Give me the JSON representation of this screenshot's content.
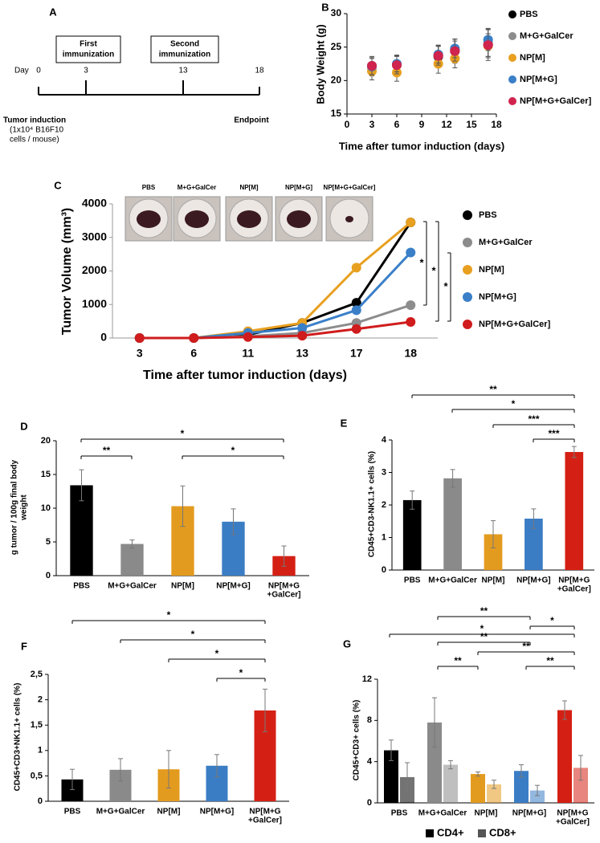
{
  "timeline": {
    "panel": "A",
    "day_label": "Day",
    "days": [
      0,
      3,
      13,
      18
    ],
    "events": [
      [
        "First",
        "immunization"
      ],
      [
        "Second",
        "immunization"
      ]
    ],
    "start": [
      "Tumor induction",
      "(1x10⁴ B16F10",
      "cells / mouse)"
    ],
    "end": "Endpoint"
  },
  "chart_data": [
    {
      "type": "scatter",
      "panel": "B",
      "y_label": "Body Weight (g)",
      "x_label": "Time after tumor induction (days)",
      "xlim": [
        0,
        18
      ],
      "xticks": [
        0,
        3,
        6,
        9,
        12,
        15,
        18
      ],
      "ylim": [
        15,
        30
      ],
      "yticks": [
        15,
        20,
        25,
        30
      ],
      "x": [
        3,
        6,
        11,
        13,
        17
      ],
      "series": [
        {
          "name": "PBS",
          "color": "#000000",
          "values": [
            22.2,
            22.4,
            23.6,
            24.4,
            25.4
          ],
          "errors": [
            1.4,
            1.4,
            1.6,
            1.8,
            2.4
          ]
        },
        {
          "name": "M+G+GalCer",
          "color": "#8c8c8c",
          "values": [
            22.0,
            22.3,
            23.8,
            24.6,
            25.6
          ],
          "errors": [
            1.3,
            1.5,
            1.5,
            1.6,
            2.0
          ]
        },
        {
          "name": "NP[M]",
          "color": "#e8a020",
          "values": [
            21.4,
            21.2,
            22.5,
            23.3,
            25.2
          ],
          "errors": [
            1.3,
            1.3,
            1.4,
            1.4,
            1.8
          ]
        },
        {
          "name": "NP[M+G]",
          "color": "#3a7fc8",
          "values": [
            22.1,
            22.5,
            23.9,
            24.8,
            26.1
          ],
          "errors": [
            1.2,
            1.2,
            1.3,
            1.4,
            1.6
          ]
        },
        {
          "name": "NP[M+G+GalCer]",
          "color": "#d0234e",
          "values": [
            22.2,
            22.3,
            23.7,
            24.4,
            25.3
          ],
          "errors": [
            1.3,
            1.3,
            1.4,
            1.5,
            1.7
          ]
        }
      ]
    },
    {
      "type": "line",
      "panel": "C",
      "y_label": "Tumor Volume (mm³)",
      "x_label": "Time after tumor induction (days)",
      "categories": [
        "3",
        "6",
        "11",
        "13",
        "17",
        "18"
      ],
      "ylim": [
        0,
        4000
      ],
      "yticks": [
        0,
        1000,
        2000,
        3000,
        4000
      ],
      "photo_labels": [
        "PBS",
        "M+G+GalCer",
        "NP[M]",
        "NP[M+G]",
        "NP[M+G+GalCer]"
      ],
      "annotations": [
        "*",
        "*",
        "*"
      ],
      "series": [
        {
          "name": "PBS",
          "color": "#000000",
          "values": [
            0,
            0,
            100,
            450,
            1050,
            3450
          ]
        },
        {
          "name": "M+G+GalCer",
          "color": "#8c8c8c",
          "values": [
            0,
            0,
            50,
            150,
            450,
            980
          ]
        },
        {
          "name": "NP[M]",
          "color": "#e8a020",
          "values": [
            0,
            0,
            200,
            450,
            2100,
            3450
          ]
        },
        {
          "name": "NP[M+G]",
          "color": "#3a7fc8",
          "values": [
            0,
            0,
            150,
            300,
            830,
            2550
          ]
        },
        {
          "name": "NP[M+G+GalCer]",
          "color": "#d01c1c",
          "values": [
            0,
            0,
            30,
            70,
            270,
            480
          ]
        }
      ]
    },
    {
      "type": "bar",
      "panel": "D",
      "y_label": [
        "g tumor / 100g final body",
        "weight"
      ],
      "categories": [
        "PBS",
        "M+G+GalCer",
        "NP[M]",
        "NP[M+G]",
        [
          "NP[M+G",
          "+GalCer]"
        ]
      ],
      "ylim": [
        0,
        20
      ],
      "yticks": [
        0,
        5,
        10,
        15,
        20
      ],
      "values": [
        13.4,
        4.7,
        10.3,
        8.0,
        2.9
      ],
      "errors": [
        2.3,
        0.6,
        3.0,
        1.9,
        1.5
      ],
      "colors": [
        "#000000",
        "#8a8a8a",
        "#e39b1f",
        "#3b7dc4",
        "#d42014"
      ],
      "annotations": [
        "**",
        "*",
        "*"
      ]
    },
    {
      "type": "bar",
      "panel": "E",
      "y_label": "CD45+CD3-NK1.1+ cells (%)",
      "categories": [
        "PBS",
        "M+G+GalCer",
        "NP[M]",
        "NP[M+G]",
        [
          "NP[M+G",
          "+GalCer]"
        ]
      ],
      "ylim": [
        0,
        4
      ],
      "yticks": [
        0,
        1,
        2,
        3,
        4
      ],
      "values": [
        2.15,
        2.82,
        1.1,
        1.58,
        3.63
      ],
      "errors": [
        0.28,
        0.27,
        0.42,
        0.3,
        0.17
      ],
      "colors": [
        "#000000",
        "#8a8a8a",
        "#e39b1f",
        "#3b7dc4",
        "#d42014"
      ],
      "annotations": [
        "**",
        "*",
        "***",
        "***"
      ]
    },
    {
      "type": "bar",
      "panel": "F",
      "y_label": "CD45+CD3+NK1.1+ cells (%)",
      "categories": [
        "PBS",
        "M+G+GalCer",
        "NP[M]",
        "NP[M+G]",
        [
          "NP[M+G",
          "+GalCer]"
        ]
      ],
      "ylim": [
        0,
        2.5
      ],
      "yticks": [
        0,
        {
          "value": 0.5,
          "label": "0,5"
        },
        1,
        {
          "value": 1.5,
          "label": "1,5"
        },
        2,
        {
          "value": 2.5,
          "label": "2,5"
        }
      ],
      "values": [
        0.43,
        0.62,
        0.63,
        0.7,
        1.79
      ],
      "errors": [
        0.2,
        0.22,
        0.37,
        0.22,
        0.42
      ],
      "colors": [
        "#000000",
        "#8a8a8a",
        "#e39b1f",
        "#3b7dc4",
        "#d42014"
      ],
      "annotations": [
        "*",
        "*",
        "*",
        "*"
      ]
    },
    {
      "type": "bar",
      "panel": "G",
      "y_label": "CD45+CD3+ cells (%)",
      "categories": [
        "PBS",
        "M+G+GalCer",
        "NP[M]",
        "NP[M+G]",
        [
          "NP[M+G",
          "+GalCer]"
        ]
      ],
      "ylim": [
        0,
        12
      ],
      "yticks": [
        0,
        4,
        8,
        12
      ],
      "colors": [
        "#000000",
        "#8a8a8a",
        "#e39b1f",
        "#3b7dc4",
        "#d42014"
      ],
      "series": [
        {
          "name": "CD4+",
          "color": "#000000",
          "values": [
            5.1,
            7.8,
            2.8,
            3.1,
            9.0
          ],
          "errors": [
            1.0,
            2.4,
            0.2,
            0.6,
            0.9
          ]
        },
        {
          "name": "CD8+",
          "color": "#555555",
          "values": [
            2.5,
            3.7,
            1.8,
            1.2,
            3.4
          ],
          "errors": [
            1.4,
            0.4,
            0.4,
            0.5,
            1.2
          ]
        }
      ],
      "annotations": [
        "**",
        "*",
        "*",
        "**",
        "**",
        "**",
        "**"
      ]
    }
  ]
}
